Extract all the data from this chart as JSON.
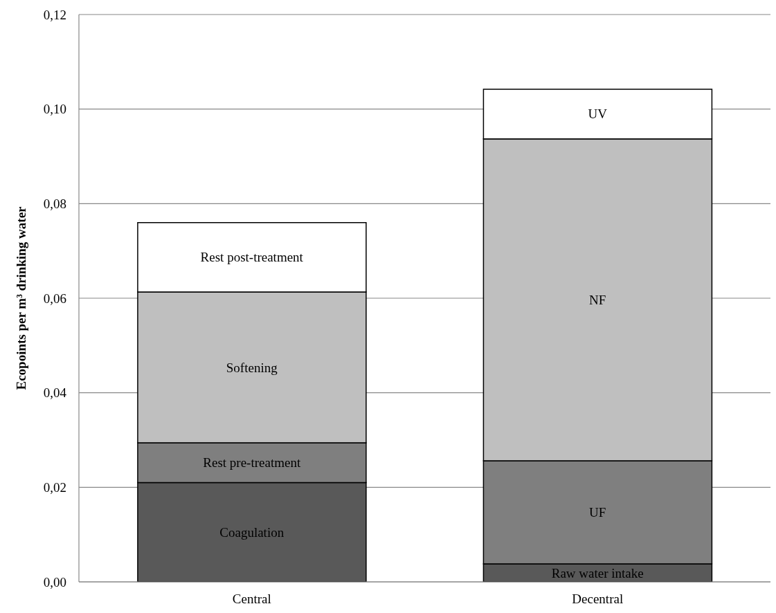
{
  "chart_data": {
    "type": "bar",
    "stacked": true,
    "ylabel": "Ecopoints per m³ drinking water",
    "categories": [
      "Central",
      "Decentral"
    ],
    "series": [
      {
        "color": "#595959",
        "values": [
          0.021,
          0.0038
        ]
      },
      {
        "color": "#7f7f7f",
        "values": [
          0.0084,
          0.0218
        ]
      },
      {
        "color": "#bfbfbf",
        "values": [
          0.0319,
          0.0681
        ]
      },
      {
        "color": "#ffffff",
        "values": [
          0.0147,
          0.0105
        ]
      }
    ],
    "ylim": [
      0,
      0.12
    ],
    "yticks": [
      {
        "value": 0,
        "label": "0,00"
      },
      {
        "value": 0.02,
        "label": "0,02"
      },
      {
        "value": 0.04,
        "label": "0,04"
      },
      {
        "value": 0.06,
        "label": "0,06"
      },
      {
        "value": 0.08,
        "label": "0,08"
      },
      {
        "value": 0.1,
        "label": "0,10"
      },
      {
        "value": 0.12,
        "label": "0,12"
      }
    ],
    "grid": "y",
    "legend": false,
    "annotations": [
      "Coagulation",
      "Rest pre-treatment",
      "Softening",
      "Rest post-treatment",
      "Raw water intake",
      "UF",
      "NF",
      "UV"
    ]
  }
}
